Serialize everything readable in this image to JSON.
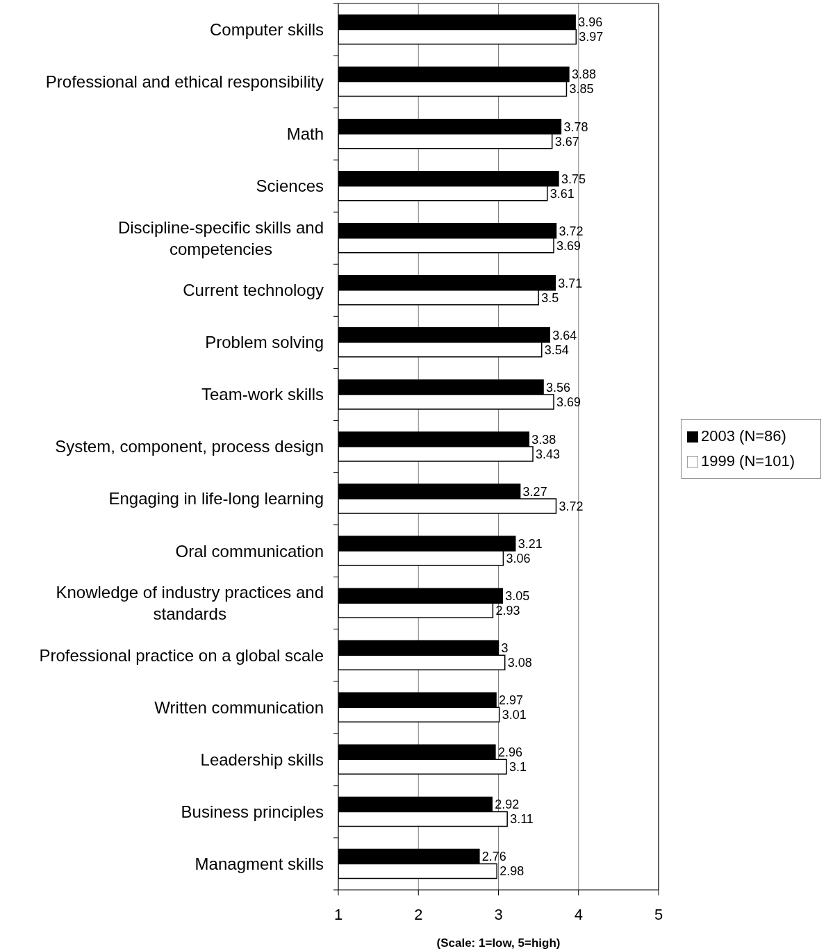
{
  "chart_data": {
    "type": "bar",
    "orientation": "horizontal",
    "categories": [
      "Computer skills",
      "Professional and ethical responsibility",
      "Math",
      "Sciences",
      "Discipline-specific skills and competencies",
      "Current technology",
      "Problem solving",
      "Team-work skills",
      "System, component, process design",
      "Engaging in life-long learning",
      "Oral communication",
      "Knowledge of industry practices and standards",
      "Professional practice on a global scale",
      "Written communication",
      "Leadership skills",
      "Business principles",
      "Managment skills"
    ],
    "series": [
      {
        "name": "2003 (N=86)",
        "color": "#000000",
        "values": [
          3.96,
          3.88,
          3.78,
          3.75,
          3.72,
          3.71,
          3.64,
          3.56,
          3.38,
          3.27,
          3.21,
          3.05,
          3,
          2.97,
          2.96,
          2.92,
          2.76
        ]
      },
      {
        "name": "1999 (N=101)",
        "color": "#ffffff",
        "values": [
          3.97,
          3.85,
          3.67,
          3.61,
          3.69,
          3.5,
          3.54,
          3.69,
          3.43,
          3.72,
          3.06,
          2.93,
          3.08,
          3.01,
          3.1,
          3.11,
          2.98
        ]
      }
    ],
    "xlabel": "(Scale: 1=low, 5=high)",
    "xlim": [
      1,
      5
    ],
    "xticks": [
      1,
      2,
      3,
      4,
      5
    ],
    "grid": "x",
    "legend": "right",
    "data_labels": true
  }
}
